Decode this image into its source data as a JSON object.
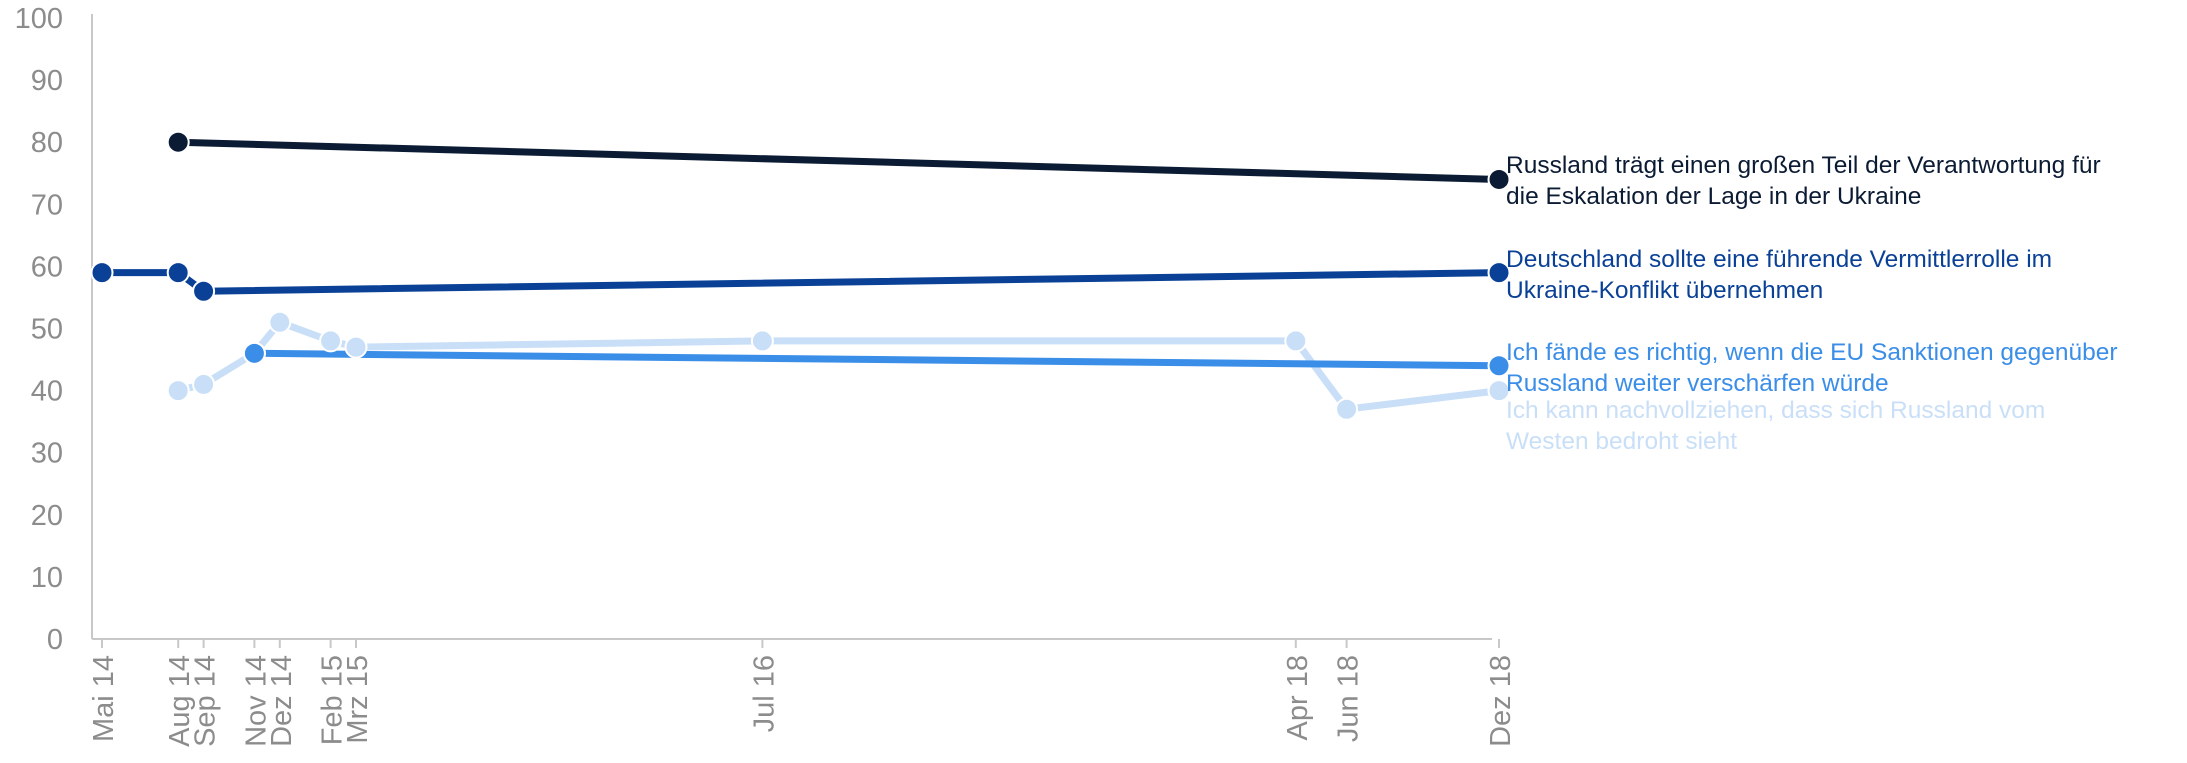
{
  "chart_data": {
    "type": "line",
    "title": "",
    "xlabel": "",
    "ylabel": "",
    "ylim": [
      0,
      100
    ],
    "yticks": [
      0,
      10,
      20,
      30,
      40,
      50,
      60,
      70,
      80,
      90,
      100
    ],
    "x_axis": "date",
    "xticks": [
      {
        "date": "2014-05",
        "label": "Mai 14"
      },
      {
        "date": "2014-08",
        "label": "Aug 14"
      },
      {
        "date": "2014-09",
        "label": "Sep 14"
      },
      {
        "date": "2014-11",
        "label": "Nov 14"
      },
      {
        "date": "2014-12",
        "label": "Dez 14"
      },
      {
        "date": "2015-02",
        "label": "Feb 15"
      },
      {
        "date": "2015-03",
        "label": "Mrz 15"
      },
      {
        "date": "2016-07",
        "label": "Jul 16"
      },
      {
        "date": "2018-04",
        "label": "Apr 18"
      },
      {
        "date": "2018-06",
        "label": "Jun 18"
      },
      {
        "date": "2018-12",
        "label": "Dez 18"
      }
    ],
    "grid": false,
    "legend": "right",
    "series": [
      {
        "key": "ukraine_verantwortung",
        "label_lines": [
          "Russland trägt einen großen Teil der Verantwortung für",
          "die Eskalation der Lage in der Ukraine"
        ],
        "color": "#0b1b33",
        "points": [
          {
            "date": "2014-08",
            "y": 80
          },
          {
            "date": "2018-12",
            "y": 74
          }
        ]
      },
      {
        "key": "vermittlerrolle",
        "label_lines": [
          "Deutschland sollte eine führende Vermittlerrolle im",
          "Ukraine-Konflikt übernehmen"
        ],
        "color": "#0a4196",
        "points": [
          {
            "date": "2014-05",
            "y": 59
          },
          {
            "date": "2014-08",
            "y": 59
          },
          {
            "date": "2014-09",
            "y": 56
          },
          {
            "date": "2018-12",
            "y": 59
          }
        ]
      },
      {
        "key": "bedroht",
        "label_lines": [
          "Ich kann nachvollziehen, dass sich Russland vom",
          "Westen bedroht sieht"
        ],
        "color": "#c9dff8",
        "points": [
          {
            "date": "2014-08",
            "y": 40
          },
          {
            "date": "2014-09",
            "y": 41
          },
          {
            "date": "2014-11",
            "y": 46
          },
          {
            "date": "2014-12",
            "y": 51
          },
          {
            "date": "2015-02",
            "y": 48
          },
          {
            "date": "2015-03",
            "y": 47
          },
          {
            "date": "2016-07",
            "y": 48
          },
          {
            "date": "2018-04",
            "y": 48
          },
          {
            "date": "2018-06",
            "y": 37
          },
          {
            "date": "2018-12",
            "y": 40
          }
        ]
      },
      {
        "key": "sanktionen",
        "label_lines": [
          "Ich fände es richtig, wenn die EU Sanktionen gegenüber",
          "Russland weiter verschärfen würde"
        ],
        "color": "#3a8ee8",
        "points": [
          {
            "date": "2014-11",
            "y": 46
          },
          {
            "date": "2018-12",
            "y": 44
          }
        ]
      }
    ]
  }
}
